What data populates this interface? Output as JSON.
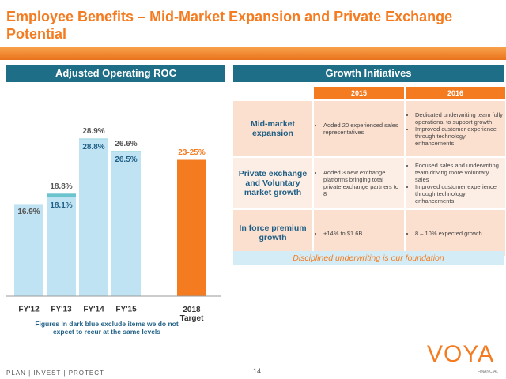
{
  "header": {
    "title": "Employee Benefits – Mid-Market Expansion and Private Exchange Potential"
  },
  "chart_data": {
    "type": "bar",
    "title": "Adjusted Operating ROC",
    "categories": [
      "FY'12",
      "FY'13",
      "FY'14",
      "FY'15"
    ],
    "series": [
      {
        "color": "#bfe3f3",
        "values": [
          16.9,
          18.8,
          28.9,
          26.6
        ],
        "value_labels": [
          "16.9%",
          "18.8%",
          "28.9%",
          "26.6%"
        ]
      },
      {
        "color": "#1f5f85",
        "values": [
          null,
          18.1,
          28.8,
          26.5
        ],
        "value_labels": [
          null,
          "18.1%",
          "28.8%",
          "26.5%"
        ]
      }
    ],
    "target": {
      "category": "2018 Target",
      "low": 23,
      "high": 25,
      "label": "23-25%",
      "color": "#f47b20"
    },
    "ylim": [
      0,
      30
    ],
    "note": "Figures in dark blue exclude items we do not expect to recur at the same levels"
  },
  "table": {
    "title": "Growth Initiatives",
    "columns": [
      "2015",
      "2016"
    ],
    "rows": [
      {
        "label": "Mid-market expansion",
        "cells": [
          [
            "Added 20 experienced sales representatives"
          ],
          [
            "Dedicated underwriting team fully operational to support growth",
            "Improved customer experience through technology enhancements"
          ]
        ]
      },
      {
        "label": "Private exchange and Voluntary market growth",
        "cells": [
          [
            "Added 3 new exchange platforms bringing total private exchange partners to 8"
          ],
          [
            "Focused sales and underwriting team driving more Voluntary sales",
            "Improved customer experience through technology enhancements"
          ]
        ]
      },
      {
        "label": "In force premium growth",
        "cells": [
          [
            "+14% to $1.6B"
          ],
          [
            "8 – 10% expected growth"
          ]
        ]
      }
    ],
    "footer": "Disciplined underwriting is our foundation"
  },
  "footer": {
    "tagline": "PLAN  |  INVEST  |  PROTECT",
    "page": "14",
    "logo": "VOYA",
    "logo_sub": "FINANCIAL"
  }
}
